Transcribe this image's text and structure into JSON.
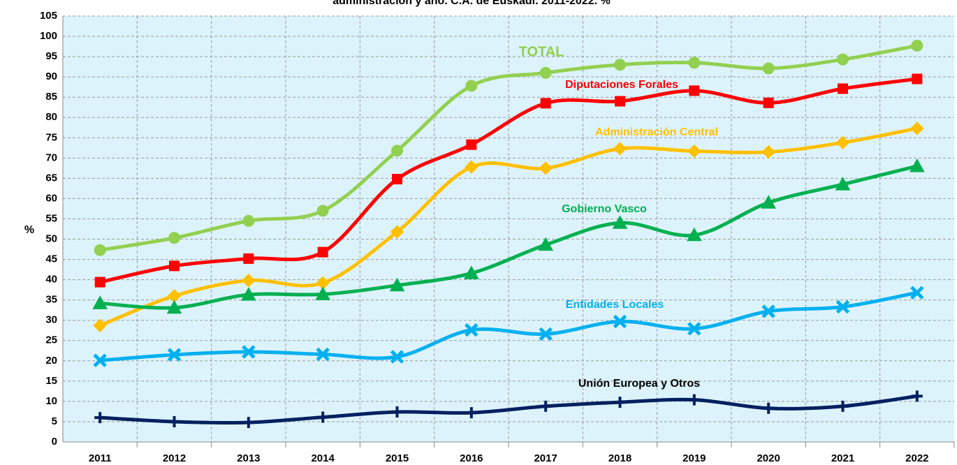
{
  "chart_data": {
    "type": "line",
    "title": "administración y año. C.A. de Euskadi. 2011-2022. %",
    "annotation": ".",
    "ylabel": "%",
    "categories": [
      "2011",
      "2012",
      "2013",
      "2014",
      "2015",
      "2016",
      "2017",
      "2018",
      "2019",
      "2020",
      "2021",
      "2022"
    ],
    "ylim": [
      0,
      105
    ],
    "yticks": [
      0,
      5,
      10,
      15,
      20,
      25,
      30,
      35,
      40,
      45,
      50,
      55,
      60,
      65,
      70,
      75,
      80,
      85,
      90,
      95,
      100,
      105
    ],
    "grid": true,
    "series": [
      {
        "name": "TOTAL",
        "color": "#92d050",
        "marker": "circle",
        "values": [
          47.3,
          50.3,
          54.5,
          57,
          71.8,
          87.8,
          91,
          93,
          93.5,
          92.1,
          94.3,
          97.7
        ]
      },
      {
        "name": "Diputaciones Forales",
        "color": "#ff0000",
        "marker": "square",
        "values": [
          39.4,
          43.4,
          45.2,
          46.8,
          64.8,
          73.3,
          83.5,
          84,
          86.6,
          83.6,
          87.1,
          89.5
        ]
      },
      {
        "name": "Administración Central",
        "color": "#ffc000",
        "marker": "diamond",
        "values": [
          28.7,
          36,
          39.8,
          39.2,
          51.8,
          67.8,
          67.5,
          72.3,
          71.7,
          71.5,
          73.8,
          77.3
        ]
      },
      {
        "name": "Gobierno Vasco",
        "color": "#00b050",
        "marker": "triangle",
        "values": [
          34.2,
          33.1,
          36.3,
          36.4,
          38.6,
          41.6,
          48.6,
          54,
          51,
          59,
          63.5,
          68
        ]
      },
      {
        "name": "Entidades Locales",
        "color": "#00b0f0",
        "marker": "x",
        "values": [
          20.1,
          21.5,
          22.2,
          21.6,
          21,
          27.6,
          26.6,
          29.7,
          27.9,
          32.2,
          33.3,
          36.8
        ]
      },
      {
        "name": "Unión Europea y Otros",
        "color": "#002060",
        "marker": "plus",
        "values": [
          6,
          5,
          4.8,
          6.1,
          7.4,
          7.2,
          8.8,
          9.8,
          10.4,
          8.3,
          8.8,
          11.3
        ]
      }
    ]
  }
}
